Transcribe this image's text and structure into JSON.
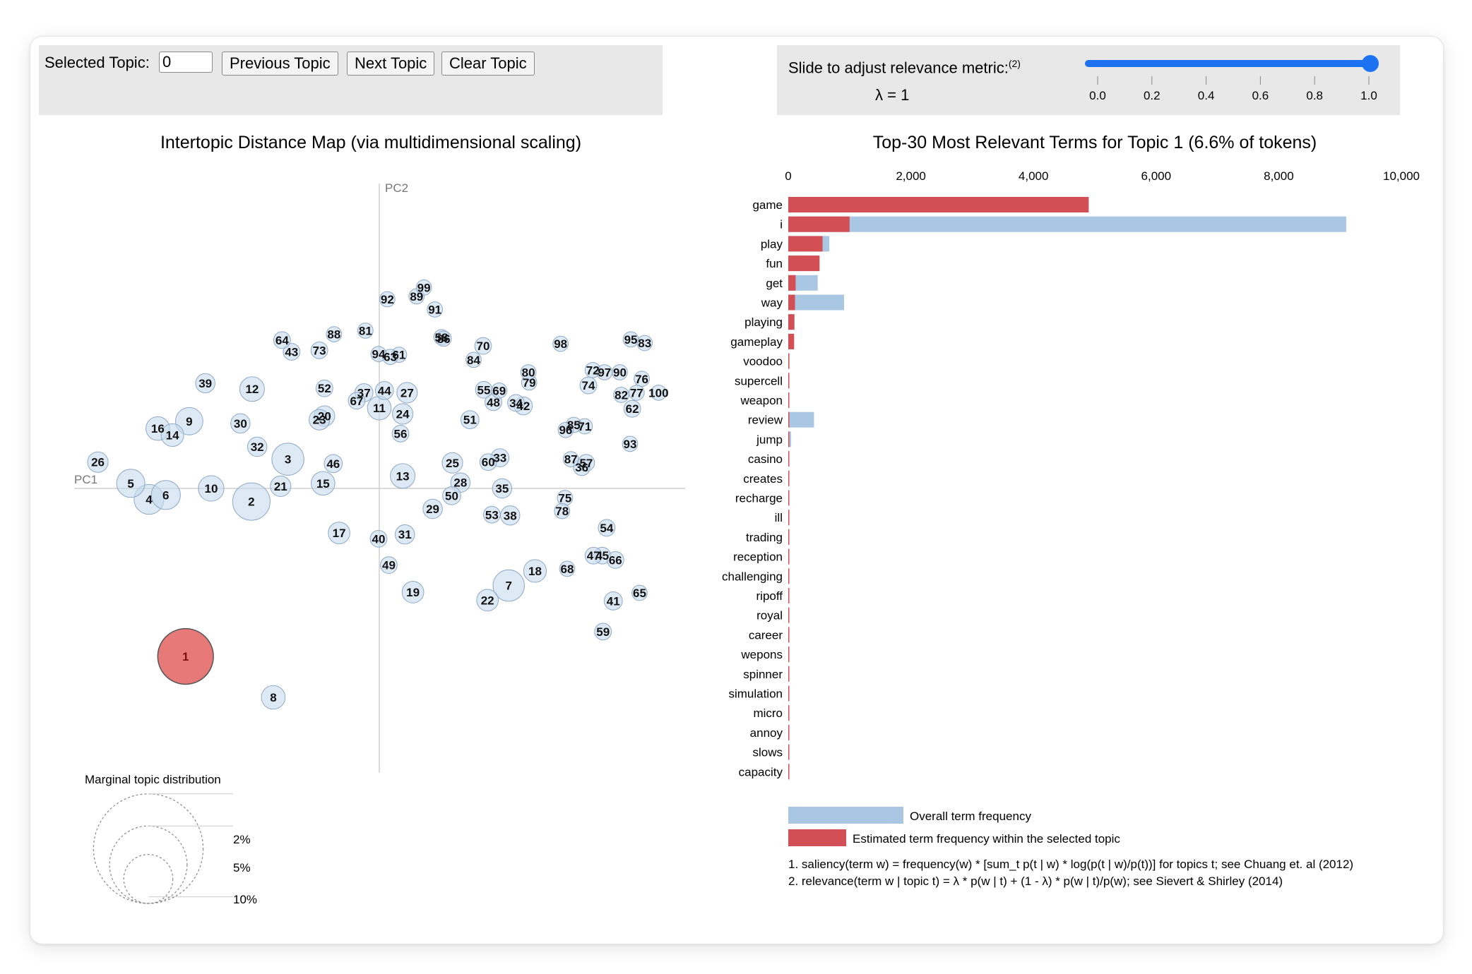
{
  "controls": {
    "selected_topic_label": "Selected Topic:",
    "selected_topic_value": "0",
    "previous_label": "Previous Topic",
    "next_label": "Next Topic",
    "clear_label": "Clear Topic",
    "relevance_label": "Slide to adjust relevance metric:",
    "relevance_footnote": "(2)",
    "lambda_text": "λ = 1",
    "lambda_value": 1,
    "slider_ticks": [
      "0.0",
      "0.2",
      "0.4",
      "0.6",
      "0.8",
      "1.0"
    ]
  },
  "colors": {
    "topic_fill": "#c6dbef",
    "topic_stroke": "#8fa9c4",
    "selected_fill": "#e87979",
    "selected_stroke": "#555555",
    "overall_bar": "#a9c7e3",
    "topic_bar": "#d24f56",
    "slider_accent": "#1d72f2"
  },
  "chart_data": [
    {
      "type": "scatter",
      "title": "Intertopic Distance Map (via multidimensional scaling)",
      "xlabel": "PC1",
      "ylabel": "PC2",
      "xlim": [
        -0.42,
        0.42
      ],
      "ylim": [
        -0.42,
        0.42
      ],
      "selected_topic": "1",
      "points": [
        {
          "label": "1",
          "x": -0.265,
          "y": -0.23,
          "size": 6.6
        },
        {
          "label": "2",
          "x": -0.175,
          "y": -0.018,
          "size": 3.0
        },
        {
          "label": "3",
          "x": -0.125,
          "y": 0.04,
          "size": 2.2
        },
        {
          "label": "4",
          "x": -0.315,
          "y": -0.015,
          "size": 1.9
        },
        {
          "label": "5",
          "x": -0.34,
          "y": 0.007,
          "size": 1.7
        },
        {
          "label": "6",
          "x": -0.292,
          "y": -0.009,
          "size": 1.8
        },
        {
          "label": "7",
          "x": 0.177,
          "y": -0.133,
          "size": 2.1
        },
        {
          "label": "8",
          "x": -0.145,
          "y": -0.286,
          "size": 1.2
        },
        {
          "label": "9",
          "x": -0.26,
          "y": 0.092,
          "size": 1.6
        },
        {
          "label": "10",
          "x": -0.23,
          "y": 0.0,
          "size": 1.4
        },
        {
          "label": "11",
          "x": 0.0,
          "y": 0.11,
          "size": 1.2
        },
        {
          "label": "12",
          "x": -0.174,
          "y": 0.136,
          "size": 1.3
        },
        {
          "label": "13",
          "x": 0.032,
          "y": 0.017,
          "size": 1.3
        },
        {
          "label": "14",
          "x": -0.283,
          "y": 0.073,
          "size": 1.1
        },
        {
          "label": "15",
          "x": -0.077,
          "y": 0.007,
          "size": 1.2
        },
        {
          "label": "16",
          "x": -0.303,
          "y": 0.082,
          "size": 1.2
        },
        {
          "label": "17",
          "x": -0.055,
          "y": -0.061,
          "size": 1.0
        },
        {
          "label": "18",
          "x": 0.213,
          "y": -0.113,
          "size": 1.1
        },
        {
          "label": "19",
          "x": 0.046,
          "y": -0.142,
          "size": 1.0
        },
        {
          "label": "20",
          "x": -0.075,
          "y": 0.099,
          "size": 0.9
        },
        {
          "label": "21",
          "x": -0.135,
          "y": 0.003,
          "size": 0.9
        },
        {
          "label": "22",
          "x": 0.148,
          "y": -0.153,
          "size": 1.0
        },
        {
          "label": "23",
          "x": -0.082,
          "y": 0.094,
          "size": 0.9
        },
        {
          "label": "24",
          "x": 0.032,
          "y": 0.102,
          "size": 0.9
        },
        {
          "label": "25",
          "x": 0.1,
          "y": 0.035,
          "size": 0.9
        },
        {
          "label": "26",
          "x": -0.385,
          "y": 0.036,
          "size": 0.9
        },
        {
          "label": "27",
          "x": 0.038,
          "y": 0.131,
          "size": 0.9
        },
        {
          "label": "28",
          "x": 0.111,
          "y": 0.008,
          "size": 0.8
        },
        {
          "label": "29",
          "x": 0.073,
          "y": -0.028,
          "size": 0.8
        },
        {
          "label": "30",
          "x": -0.19,
          "y": 0.089,
          "size": 0.8
        },
        {
          "label": "31",
          "x": 0.035,
          "y": -0.063,
          "size": 0.8
        },
        {
          "label": "32",
          "x": -0.167,
          "y": 0.057,
          "size": 0.8
        },
        {
          "label": "33",
          "x": 0.165,
          "y": 0.042,
          "size": 0.7
        },
        {
          "label": "34",
          "x": 0.187,
          "y": 0.117,
          "size": 0.6
        },
        {
          "label": "35",
          "x": 0.168,
          "y": 0.0,
          "size": 0.8
        },
        {
          "label": "36",
          "x": 0.277,
          "y": 0.029,
          "size": 0.6
        },
        {
          "label": "37",
          "x": -0.021,
          "y": 0.131,
          "size": 0.7
        },
        {
          "label": "38",
          "x": 0.179,
          "y": -0.037,
          "size": 0.8
        },
        {
          "label": "39",
          "x": -0.238,
          "y": 0.144,
          "size": 0.8
        },
        {
          "label": "40",
          "x": -0.001,
          "y": -0.069,
          "size": 0.6
        },
        {
          "label": "41",
          "x": 0.32,
          "y": -0.154,
          "size": 0.7
        },
        {
          "label": "42",
          "x": 0.197,
          "y": 0.113,
          "size": 0.7
        },
        {
          "label": "43",
          "x": -0.12,
          "y": 0.187,
          "size": 0.6
        },
        {
          "label": "44",
          "x": 0.007,
          "y": 0.134,
          "size": 0.7
        },
        {
          "label": "45",
          "x": 0.305,
          "y": -0.092,
          "size": 0.6
        },
        {
          "label": "46",
          "x": -0.063,
          "y": 0.034,
          "size": 0.7
        },
        {
          "label": "47",
          "x": 0.293,
          "y": -0.092,
          "size": 0.6
        },
        {
          "label": "48",
          "x": 0.156,
          "y": 0.118,
          "size": 0.6
        },
        {
          "label": "49",
          "x": 0.013,
          "y": -0.105,
          "size": 0.6
        },
        {
          "label": "50",
          "x": 0.099,
          "y": -0.01,
          "size": 0.7
        },
        {
          "label": "51",
          "x": 0.124,
          "y": 0.094,
          "size": 0.7
        },
        {
          "label": "52",
          "x": -0.075,
          "y": 0.137,
          "size": 0.6
        },
        {
          "label": "53",
          "x": 0.154,
          "y": -0.036,
          "size": 0.6
        },
        {
          "label": "54",
          "x": 0.311,
          "y": -0.054,
          "size": 0.6
        },
        {
          "label": "55",
          "x": 0.143,
          "y": 0.135,
          "size": 0.6
        },
        {
          "label": "56",
          "x": 0.029,
          "y": 0.075,
          "size": 0.6
        },
        {
          "label": "57",
          "x": 0.283,
          "y": 0.035,
          "size": 0.6
        },
        {
          "label": "58",
          "x": 0.085,
          "y": 0.207,
          "size": 0.5
        },
        {
          "label": "59",
          "x": 0.306,
          "y": -0.196,
          "size": 0.6
        },
        {
          "label": "60",
          "x": 0.149,
          "y": 0.036,
          "size": 0.6
        },
        {
          "label": "61",
          "x": 0.027,
          "y": 0.183,
          "size": 0.5
        },
        {
          "label": "62",
          "x": 0.346,
          "y": 0.109,
          "size": 0.6
        },
        {
          "label": "63",
          "x": 0.015,
          "y": 0.18,
          "size": 0.5
        },
        {
          "label": "64",
          "x": -0.133,
          "y": 0.203,
          "size": 0.6
        },
        {
          "label": "65",
          "x": 0.356,
          "y": -0.143,
          "size": 0.5
        },
        {
          "label": "66",
          "x": 0.323,
          "y": -0.098,
          "size": 0.6
        },
        {
          "label": "67",
          "x": -0.031,
          "y": 0.12,
          "size": 0.6
        },
        {
          "label": "68",
          "x": 0.257,
          "y": -0.11,
          "size": 0.5
        },
        {
          "label": "69",
          "x": 0.164,
          "y": 0.134,
          "size": 0.5
        },
        {
          "label": "70",
          "x": 0.142,
          "y": 0.195,
          "size": 0.6
        },
        {
          "label": "71",
          "x": 0.281,
          "y": 0.085,
          "size": 0.5
        },
        {
          "label": "72",
          "x": 0.292,
          "y": 0.162,
          "size": 0.5
        },
        {
          "label": "73",
          "x": -0.082,
          "y": 0.189,
          "size": 0.6
        },
        {
          "label": "74",
          "x": 0.286,
          "y": 0.141,
          "size": 0.6
        },
        {
          "label": "75",
          "x": 0.254,
          "y": -0.013,
          "size": 0.5
        },
        {
          "label": "76",
          "x": 0.359,
          "y": 0.15,
          "size": 0.5
        },
        {
          "label": "77",
          "x": 0.352,
          "y": 0.131,
          "size": 0.5
        },
        {
          "label": "78",
          "x": 0.25,
          "y": -0.031,
          "size": 0.5
        },
        {
          "label": "79",
          "x": 0.205,
          "y": 0.145,
          "size": 0.5
        },
        {
          "label": "80",
          "x": 0.204,
          "y": 0.159,
          "size": 0.5
        },
        {
          "label": "81",
          "x": -0.019,
          "y": 0.216,
          "size": 0.5
        },
        {
          "label": "82",
          "x": 0.331,
          "y": 0.128,
          "size": 0.5
        },
        {
          "label": "83",
          "x": 0.363,
          "y": 0.199,
          "size": 0.5
        },
        {
          "label": "84",
          "x": 0.129,
          "y": 0.176,
          "size": 0.5
        },
        {
          "label": "85",
          "x": 0.266,
          "y": 0.087,
          "size": 0.5
        },
        {
          "label": "86",
          "x": 0.088,
          "y": 0.205,
          "size": 0.5
        },
        {
          "label": "87",
          "x": 0.262,
          "y": 0.04,
          "size": 0.5
        },
        {
          "label": "88",
          "x": -0.062,
          "y": 0.211,
          "size": 0.5
        },
        {
          "label": "89",
          "x": 0.051,
          "y": 0.263,
          "size": 0.5
        },
        {
          "label": "90",
          "x": 0.329,
          "y": 0.159,
          "size": 0.5
        },
        {
          "label": "91",
          "x": 0.076,
          "y": 0.245,
          "size": 0.5
        },
        {
          "label": "92",
          "x": 0.011,
          "y": 0.259,
          "size": 0.5
        },
        {
          "label": "93",
          "x": 0.343,
          "y": 0.061,
          "size": 0.5
        },
        {
          "label": "94",
          "x": -0.001,
          "y": 0.184,
          "size": 0.5
        },
        {
          "label": "95",
          "x": 0.344,
          "y": 0.204,
          "size": 0.5
        },
        {
          "label": "96",
          "x": 0.255,
          "y": 0.08,
          "size": 0.5
        },
        {
          "label": "97",
          "x": 0.308,
          "y": 0.159,
          "size": 0.5
        },
        {
          "label": "98",
          "x": 0.248,
          "y": 0.198,
          "size": 0.5
        },
        {
          "label": "99",
          "x": 0.061,
          "y": 0.275,
          "size": 0.5
        },
        {
          "label": "100",
          "x": 0.382,
          "y": 0.131,
          "size": 0.5
        }
      ],
      "legend": {
        "title": "Marginal topic distribution",
        "entries": [
          {
            "label": "2%",
            "value": 2
          },
          {
            "label": "5%",
            "value": 5
          },
          {
            "label": "10%",
            "value": 10
          }
        ]
      }
    },
    {
      "type": "bar",
      "orientation": "horizontal",
      "title": "Top-30 Most Relevant Terms for Topic 1 (6.6% of tokens)",
      "xlim": [
        0,
        10000
      ],
      "xticks": [
        "0",
        "2,000",
        "4,000",
        "6,000",
        "8,000",
        "10,000"
      ],
      "categories": [
        "game",
        "i",
        "play",
        "fun",
        "get",
        "way",
        "playing",
        "gameplay",
        "voodoo",
        "supercell",
        "weapon",
        "review",
        "jump",
        "casino",
        "creates",
        "recharge",
        "ill",
        "trading",
        "reception",
        "challenging",
        "ripoff",
        "royal",
        "career",
        "wepons",
        "spinner",
        "simulation",
        "micro",
        "annoy",
        "slows",
        "capacity"
      ],
      "series": [
        {
          "name": "Overall term frequency",
          "values": [
            4900,
            9100,
            670,
            510,
            480,
            910,
            100,
            95,
            18,
            16,
            16,
            420,
            45,
            12,
            10,
            9,
            8,
            8,
            7,
            7,
            6,
            6,
            6,
            5,
            5,
            5,
            5,
            5,
            4,
            4
          ]
        },
        {
          "name": "Estimated term frequency within the selected topic",
          "values": [
            4900,
            1000,
            560,
            510,
            120,
            110,
            100,
            95,
            18,
            16,
            16,
            10,
            8,
            12,
            10,
            9,
            8,
            8,
            7,
            7,
            6,
            6,
            6,
            5,
            5,
            5,
            5,
            5,
            4,
            4
          ]
        }
      ],
      "footnotes": [
        "1. saliency(term w) = frequency(w) * [sum_t p(t | w) * log(p(t | w)/p(t))] for topics t; see Chuang et. al (2012)",
        "2. relevance(term w | topic t) = λ * p(w | t) + (1 - λ) * p(w | t)/p(w); see Sievert & Shirley (2014)"
      ]
    }
  ]
}
